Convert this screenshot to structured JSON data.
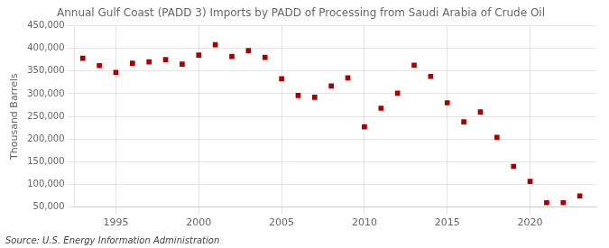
{
  "chart_data": {
    "type": "scatter",
    "title": "Annual Gulf Coast (PADD 3) Imports by PADD of Processing from Saudi Arabia of Crude Oil",
    "ylabel": "Thousand Barrels",
    "source": "Source: U.S. Energy Information Administration",
    "x": [
      1993,
      1994,
      1995,
      1996,
      1997,
      1998,
      1999,
      2000,
      2001,
      2002,
      2003,
      2004,
      2005,
      2006,
      2007,
      2008,
      2009,
      2010,
      2011,
      2012,
      2013,
      2014,
      2015,
      2016,
      2017,
      2018,
      2019,
      2020,
      2021,
      2022,
      2023
    ],
    "values": [
      378000,
      362000,
      347000,
      367000,
      370000,
      375000,
      365000,
      385000,
      408000,
      382000,
      395000,
      380000,
      333000,
      296000,
      292000,
      317000,
      335000,
      227000,
      268000,
      301000,
      363000,
      338000,
      280000,
      238000,
      260000,
      204000,
      140000,
      107000,
      60000,
      60000,
      75000
    ],
    "color": "#aa0000",
    "marker": "square",
    "xlim": [
      1992.5,
      2024
    ],
    "xticks": [
      1995,
      2000,
      2005,
      2010,
      2015,
      2020
    ],
    "ylim": [
      50000,
      450000
    ],
    "yticks": [
      {
        "value": 50000,
        "label": "50,000"
      },
      {
        "value": 100000,
        "label": "100,000"
      },
      {
        "value": 150000,
        "label": "150,000"
      },
      {
        "value": 200000,
        "label": "200,000"
      },
      {
        "value": 250000,
        "label": "250,000"
      },
      {
        "value": 300000,
        "label": "300,000"
      },
      {
        "value": 350000,
        "label": "350,000"
      },
      {
        "value": 400000,
        "label": "400,000"
      },
      {
        "value": 450000,
        "label": "450,000"
      }
    ],
    "grid": true
  }
}
